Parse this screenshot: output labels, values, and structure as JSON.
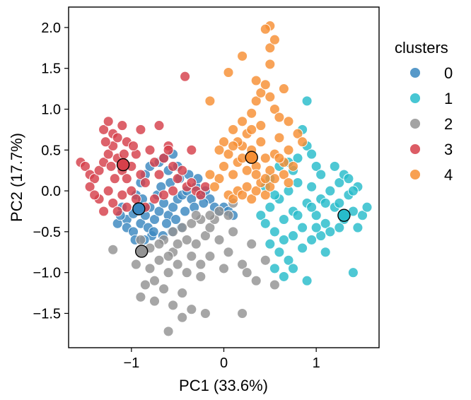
{
  "chart_data": {
    "type": "scatter",
    "title": "",
    "xlabel": "PC1 (33.6%)",
    "ylabel": "PC2 (17.7%)",
    "xlim": [
      -1.68,
      1.68
    ],
    "ylim": [
      -1.92,
      2.25
    ],
    "xticks": [
      -1,
      0,
      1
    ],
    "xtick_labels": [
      "−1",
      "0",
      "1"
    ],
    "yticks": [
      -1.5,
      -1.0,
      -0.5,
      0.0,
      0.5,
      1.0,
      1.5,
      2.0
    ],
    "ytick_labels": [
      "−1.5",
      "−1.0",
      "−0.5",
      "0.0",
      "0.5",
      "1.0",
      "1.5",
      "2.0"
    ],
    "grid": false,
    "legend": {
      "title": "clusters",
      "placement": "right-outside"
    },
    "series": [
      {
        "name": "0",
        "color": "#3a87c0",
        "centroid": [
          -0.92,
          -0.22
        ],
        "points": [
          [
            -1.05,
            -0.35
          ],
          [
            -0.98,
            -0.28
          ],
          [
            -0.9,
            -0.4
          ],
          [
            -0.85,
            -0.3
          ],
          [
            -0.8,
            -0.2
          ],
          [
            -0.75,
            -0.35
          ],
          [
            -0.7,
            -0.25
          ],
          [
            -0.65,
            -0.15
          ],
          [
            -0.6,
            -0.3
          ],
          [
            -0.55,
            -0.2
          ],
          [
            -0.5,
            -0.1
          ],
          [
            -0.45,
            -0.05
          ],
          [
            -0.4,
            0.0
          ],
          [
            -0.35,
            -0.1
          ],
          [
            -0.3,
            0.05
          ],
          [
            -0.25,
            -0.05
          ],
          [
            -0.2,
            0.0
          ],
          [
            -0.15,
            -0.1
          ],
          [
            -0.1,
            -0.2
          ],
          [
            -0.05,
            -0.25
          ],
          [
            0.0,
            -0.2
          ],
          [
            0.05,
            -0.25
          ],
          [
            0.1,
            -0.3
          ],
          [
            -1.1,
            -0.2
          ],
          [
            -1.05,
            -0.45
          ],
          [
            -0.98,
            -0.5
          ],
          [
            -0.95,
            -0.05
          ],
          [
            -0.88,
            -0.1
          ],
          [
            -0.82,
            -0.45
          ],
          [
            -0.78,
            -0.55
          ],
          [
            -0.72,
            -0.05
          ],
          [
            -0.68,
            0.05
          ],
          [
            -0.62,
            -0.4
          ],
          [
            -0.58,
            0.1
          ],
          [
            -0.52,
            -0.35
          ],
          [
            -0.48,
            0.15
          ],
          [
            -0.42,
            -0.25
          ],
          [
            -0.38,
            0.2
          ],
          [
            -0.32,
            -0.2
          ],
          [
            -0.28,
            0.15
          ],
          [
            -0.22,
            -0.15
          ],
          [
            -0.9,
            0.1
          ],
          [
            -0.85,
            0.2
          ],
          [
            -0.8,
            0.3
          ],
          [
            -0.7,
            0.35
          ],
          [
            -0.65,
            0.4
          ],
          [
            -0.6,
            0.25
          ],
          [
            -0.55,
            0.45
          ],
          [
            -0.5,
            0.3
          ],
          [
            -1.15,
            -0.4
          ],
          [
            -1.12,
            -0.3
          ],
          [
            -0.96,
            -0.6
          ],
          [
            -0.86,
            -0.6
          ],
          [
            -0.76,
            -0.5
          ],
          [
            -0.66,
            -0.55
          ],
          [
            -0.56,
            -0.5
          ],
          [
            -0.46,
            -0.45
          ]
        ]
      },
      {
        "name": "1",
        "color": "#27bccb",
        "centroid": [
          1.3,
          -0.3
        ],
        "points": [
          [
            0.4,
            -0.3
          ],
          [
            0.45,
            -0.4
          ],
          [
            0.5,
            -0.2
          ],
          [
            0.55,
            -0.5
          ],
          [
            0.6,
            -0.1
          ],
          [
            0.65,
            -0.35
          ],
          [
            0.7,
            0.0
          ],
          [
            0.75,
            -0.25
          ],
          [
            0.8,
            0.1
          ],
          [
            0.85,
            -0.45
          ],
          [
            0.9,
            -0.15
          ],
          [
            0.95,
            0.05
          ],
          [
            1.0,
            -0.3
          ],
          [
            1.05,
            -0.1
          ],
          [
            1.1,
            -0.4
          ],
          [
            1.15,
            0.0
          ],
          [
            1.2,
            -0.2
          ],
          [
            1.25,
            0.1
          ],
          [
            1.3,
            -0.35
          ],
          [
            1.35,
            -0.05
          ],
          [
            1.4,
            -0.25
          ],
          [
            1.45,
            0.05
          ],
          [
            1.5,
            -0.3
          ],
          [
            1.55,
            -0.2
          ],
          [
            0.5,
            -0.65
          ],
          [
            0.6,
            -0.75
          ],
          [
            0.7,
            -0.85
          ],
          [
            0.75,
            -0.95
          ],
          [
            0.65,
            -1.05
          ],
          [
            0.55,
            -0.95
          ],
          [
            0.85,
            -0.7
          ],
          [
            0.95,
            -0.6
          ],
          [
            1.05,
            -0.55
          ],
          [
            1.1,
            -0.75
          ],
          [
            0.9,
            -1.1
          ],
          [
            1.4,
            -1.0
          ],
          [
            0.9,
            0.55
          ],
          [
            0.85,
            0.75
          ],
          [
            0.95,
            0.45
          ],
          [
            1.0,
            0.3
          ],
          [
            1.05,
            0.2
          ],
          [
            1.2,
            0.3
          ],
          [
            1.3,
            0.2
          ],
          [
            1.35,
            0.15
          ],
          [
            1.4,
            0.0
          ],
          [
            0.9,
            1.1
          ],
          [
            0.75,
            0.25
          ],
          [
            0.8,
            0.4
          ],
          [
            0.7,
            0.35
          ],
          [
            0.6,
            0.3
          ],
          [
            0.5,
            0.15
          ],
          [
            0.45,
            0.05
          ],
          [
            1.0,
            -0.45
          ],
          [
            1.15,
            -0.5
          ],
          [
            1.25,
            -0.45
          ],
          [
            1.45,
            -0.45
          ],
          [
            0.8,
            -0.3
          ],
          [
            0.95,
            -0.2
          ],
          [
            1.1,
            -0.15
          ],
          [
            1.25,
            -0.15
          ],
          [
            0.55,
            -0.05
          ],
          [
            0.65,
            -0.6
          ],
          [
            0.75,
            -0.55
          ]
        ]
      },
      {
        "name": "2",
        "color": "#939393",
        "centroid": [
          -0.89,
          -0.74
        ],
        "points": [
          [
            -1.2,
            -0.72
          ],
          [
            -0.95,
            -0.9
          ],
          [
            -0.9,
            -1.3
          ],
          [
            -0.8,
            -0.95
          ],
          [
            -0.75,
            -1.1
          ],
          [
            -0.7,
            -0.85
          ],
          [
            -0.65,
            -1.2
          ],
          [
            -0.6,
            -1.0
          ],
          [
            -0.55,
            -0.75
          ],
          [
            -0.5,
            -0.9
          ],
          [
            -0.45,
            -1.25
          ],
          [
            -0.4,
            -1.0
          ],
          [
            -0.35,
            -0.8
          ],
          [
            -0.3,
            -0.65
          ],
          [
            -0.25,
            -1.05
          ],
          [
            -0.2,
            -0.55
          ],
          [
            -0.15,
            -0.45
          ],
          [
            -0.1,
            -0.35
          ],
          [
            -0.05,
            -0.6
          ],
          [
            0.0,
            -0.95
          ],
          [
            0.05,
            -0.75
          ],
          [
            0.1,
            -0.5
          ],
          [
            0.2,
            -0.9
          ],
          [
            0.25,
            -1.0
          ],
          [
            0.3,
            -0.65
          ],
          [
            0.35,
            -1.1
          ],
          [
            0.45,
            -0.85
          ],
          [
            0.55,
            -1.15
          ],
          [
            -0.6,
            -1.72
          ],
          [
            -0.2,
            -1.5
          ],
          [
            0.2,
            -1.5
          ],
          [
            -0.55,
            -1.4
          ],
          [
            -0.45,
            -1.55
          ],
          [
            -0.35,
            -1.45
          ],
          [
            -0.75,
            -1.35
          ],
          [
            -0.85,
            -1.15
          ],
          [
            -0.65,
            -0.6
          ],
          [
            -0.55,
            -0.5
          ],
          [
            -0.45,
            -0.45
          ],
          [
            -0.35,
            -0.4
          ],
          [
            -0.25,
            -0.35
          ],
          [
            -0.15,
            -0.3
          ],
          [
            -0.05,
            -0.25
          ],
          [
            0.05,
            -0.3
          ],
          [
            0.1,
            -0.15
          ],
          [
            -0.3,
            -0.3
          ],
          [
            -0.4,
            -0.6
          ],
          [
            -0.5,
            -0.65
          ],
          [
            -0.6,
            -0.8
          ],
          [
            -0.7,
            -0.65
          ],
          [
            -0.8,
            -0.7
          ],
          [
            -0.9,
            -0.6
          ],
          [
            -0.15,
            -0.8
          ],
          [
            -0.25,
            -0.9
          ]
        ]
      },
      {
        "name": "3",
        "color": "#d6404a",
        "centroid": [
          -1.09,
          0.32
        ],
        "points": [
          [
            -1.55,
            0.35
          ],
          [
            -1.5,
            0.3
          ],
          [
            -1.45,
            0.2
          ],
          [
            -1.4,
            0.15
          ],
          [
            -1.35,
            0.25
          ],
          [
            -1.3,
            0.35
          ],
          [
            -1.25,
            0.45
          ],
          [
            -1.2,
            0.55
          ],
          [
            -1.15,
            0.4
          ],
          [
            -1.1,
            0.25
          ],
          [
            -1.05,
            0.15
          ],
          [
            -1.0,
            0.3
          ],
          [
            -0.95,
            0.45
          ],
          [
            -0.9,
            0.2
          ],
          [
            -0.85,
            0.1
          ],
          [
            -0.8,
            0.5
          ],
          [
            -0.75,
            0.35
          ],
          [
            -0.7,
            0.2
          ],
          [
            -0.65,
            0.4
          ],
          [
            -0.6,
            0.55
          ],
          [
            -0.55,
            0.3
          ],
          [
            -0.5,
            0.15
          ],
          [
            -0.45,
            0.25
          ],
          [
            -0.4,
            0.05
          ],
          [
            -0.35,
            0.1
          ],
          [
            -0.3,
            0.0
          ],
          [
            -0.25,
            -0.05
          ],
          [
            -0.2,
            0.05
          ],
          [
            -1.35,
            -0.1
          ],
          [
            -1.3,
            -0.25
          ],
          [
            -1.25,
            0.0
          ],
          [
            -1.2,
            -0.15
          ],
          [
            -1.15,
            -0.25
          ],
          [
            -1.1,
            -0.05
          ],
          [
            -1.05,
            -0.2
          ],
          [
            -1.0,
            0.0
          ],
          [
            -1.3,
            0.75
          ],
          [
            -1.25,
            0.85
          ],
          [
            -1.2,
            0.7
          ],
          [
            -1.15,
            0.65
          ],
          [
            -1.1,
            0.8
          ],
          [
            -1.05,
            0.6
          ],
          [
            -0.9,
            0.75
          ],
          [
            -0.7,
            0.8
          ],
          [
            -0.6,
            0.5
          ],
          [
            -0.42,
            1.4
          ],
          [
            -0.35,
            0.5
          ],
          [
            -1.45,
            0.05
          ],
          [
            -1.4,
            -0.05
          ],
          [
            -0.95,
            -0.1
          ],
          [
            -0.85,
            -0.2
          ],
          [
            -0.75,
            -0.1
          ],
          [
            -0.65,
            -0.05
          ],
          [
            -0.55,
            0.0
          ],
          [
            -1.28,
            0.6
          ],
          [
            -1.22,
            0.3
          ],
          [
            -1.18,
            0.15
          ],
          [
            -1.08,
            0.45
          ],
          [
            -0.98,
            0.55
          ]
        ]
      },
      {
        "name": "4",
        "color": "#f78f33",
        "centroid": [
          0.3,
          0.41
        ],
        "points": [
          [
            0.0,
            0.3
          ],
          [
            0.05,
            0.45
          ],
          [
            0.1,
            0.2
          ],
          [
            0.15,
            0.35
          ],
          [
            0.2,
            0.55
          ],
          [
            0.25,
            0.25
          ],
          [
            0.3,
            0.5
          ],
          [
            0.35,
            0.3
          ],
          [
            0.4,
            0.6
          ],
          [
            0.45,
            0.4
          ],
          [
            0.5,
            0.25
          ],
          [
            0.55,
            0.45
          ],
          [
            0.6,
            0.65
          ],
          [
            0.65,
            0.35
          ],
          [
            0.7,
            0.5
          ],
          [
            0.75,
            0.3
          ],
          [
            -0.05,
            0.15
          ],
          [
            -0.1,
            0.05
          ],
          [
            -0.15,
            0.2
          ],
          [
            0.05,
            -0.05
          ],
          [
            0.1,
            -0.1
          ],
          [
            0.15,
            0.0
          ],
          [
            0.2,
            -0.05
          ],
          [
            0.25,
            0.05
          ],
          [
            0.3,
            -0.1
          ],
          [
            0.35,
            0.0
          ],
          [
            0.4,
            0.1
          ],
          [
            0.45,
            -0.05
          ],
          [
            0.5,
            0.05
          ],
          [
            0.55,
            0.15
          ],
          [
            0.1,
            0.75
          ],
          [
            0.2,
            0.85
          ],
          [
            0.3,
            0.95
          ],
          [
            0.35,
            1.1
          ],
          [
            0.4,
            1.2
          ],
          [
            0.45,
            1.3
          ],
          [
            0.5,
            1.15
          ],
          [
            0.55,
            1.0
          ],
          [
            0.6,
            0.9
          ],
          [
            0.65,
            1.25
          ],
          [
            0.7,
            0.85
          ],
          [
            0.35,
            1.35
          ],
          [
            0.5,
            1.55
          ],
          [
            0.5,
            1.75
          ],
          [
            0.55,
            1.85
          ],
          [
            0.5,
            2.02
          ],
          [
            0.45,
            1.98
          ],
          [
            0.2,
            1.65
          ],
          [
            0.05,
            1.45
          ],
          [
            -0.15,
            1.1
          ],
          [
            0.8,
            0.7
          ],
          [
            0.85,
            0.6
          ],
          [
            0.25,
            0.7
          ],
          [
            0.15,
            0.6
          ],
          [
            0.0,
            0.6
          ],
          [
            -0.05,
            0.5
          ],
          [
            0.4,
            0.8
          ],
          [
            0.3,
            0.75
          ],
          [
            0.2,
            0.4
          ],
          [
            0.1,
            0.55
          ],
          [
            0.6,
            0.4
          ],
          [
            0.65,
            0.2
          ],
          [
            0.7,
            0.1
          ],
          [
            0.35,
            0.2
          ],
          [
            0.45,
            0.15
          ]
        ]
      }
    ]
  }
}
